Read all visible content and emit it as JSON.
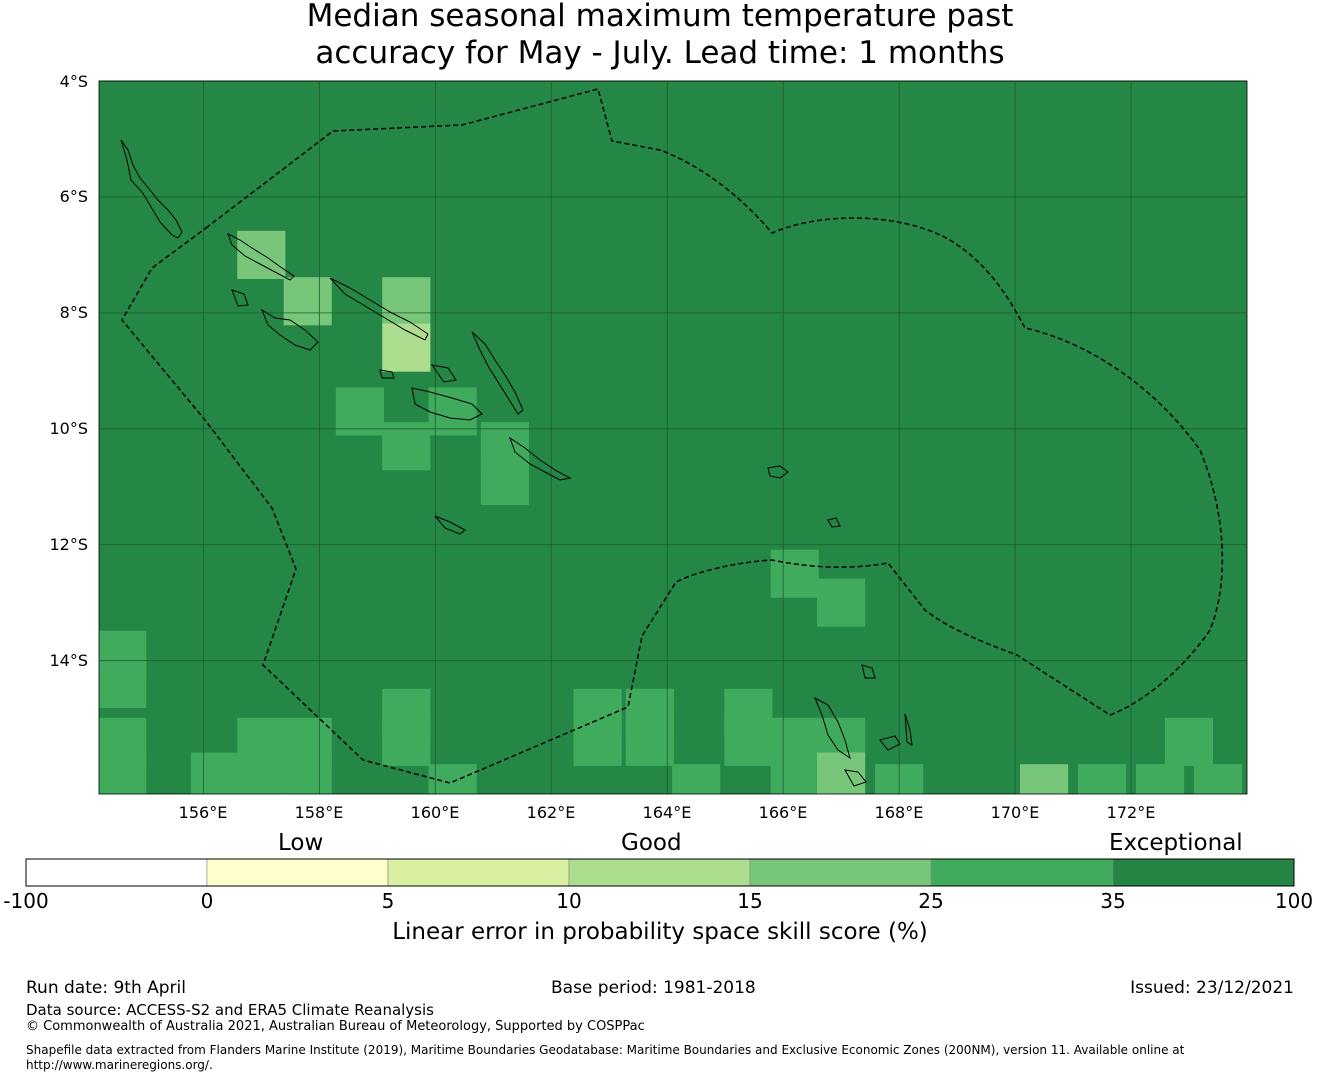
{
  "title": {
    "line1": "Median seasonal maximum temperature past",
    "line2": "accuracy for May - July. Lead time: 1 months"
  },
  "map": {
    "background_color": "#258745",
    "lat_ticks": [
      "4°S",
      "6°S",
      "8°S",
      "10°S",
      "12°S",
      "14°S"
    ],
    "lon_ticks": [
      "156°E",
      "158°E",
      "160°E",
      "162°E",
      "164°E",
      "166°E",
      "168°E",
      "170°E",
      "172°E"
    ],
    "lon_range": [
      154.2,
      174.0
    ],
    "lat_range": [
      -16.3,
      -4.0
    ],
    "grid_cell_deg": 0.83,
    "cells": [
      {
        "lon": 157.0,
        "lat": -7.0,
        "level": 4
      },
      {
        "lon": 157.8,
        "lat": -7.8,
        "level": 4
      },
      {
        "lon": 159.5,
        "lat": -7.8,
        "level": 4
      },
      {
        "lon": 159.5,
        "lat": -8.6,
        "level": 3
      },
      {
        "lon": 158.7,
        "lat": -9.7,
        "level": 5
      },
      {
        "lon": 160.3,
        "lat": -9.7,
        "level": 5
      },
      {
        "lon": 159.5,
        "lat": -10.3,
        "level": 5
      },
      {
        "lon": 161.2,
        "lat": -10.3,
        "level": 5
      },
      {
        "lon": 161.2,
        "lat": -10.9,
        "level": 5
      },
      {
        "lon": 166.2,
        "lat": -12.5,
        "level": 5
      },
      {
        "lon": 167.0,
        "lat": -13.0,
        "level": 5
      },
      {
        "lon": 154.6,
        "lat": -13.9,
        "level": 5
      },
      {
        "lon": 154.6,
        "lat": -14.4,
        "level": 5
      },
      {
        "lon": 159.5,
        "lat": -14.9,
        "level": 5
      },
      {
        "lon": 159.5,
        "lat": -15.4,
        "level": 5
      },
      {
        "lon": 162.8,
        "lat": -14.9,
        "level": 5
      },
      {
        "lon": 163.7,
        "lat": -14.9,
        "level": 5
      },
      {
        "lon": 162.8,
        "lat": -15.4,
        "level": 5
      },
      {
        "lon": 163.7,
        "lat": -15.4,
        "level": 5
      },
      {
        "lon": 165.4,
        "lat": -14.9,
        "level": 5
      },
      {
        "lon": 165.4,
        "lat": -15.4,
        "level": 5
      },
      {
        "lon": 166.2,
        "lat": -15.4,
        "level": 5
      },
      {
        "lon": 167.0,
        "lat": -15.4,
        "level": 5
      },
      {
        "lon": 166.2,
        "lat": -16.0,
        "level": 5
      },
      {
        "lon": 167.0,
        "lat": -16.0,
        "level": 4
      },
      {
        "lon": 154.6,
        "lat": -15.4,
        "level": 5
      },
      {
        "lon": 154.6,
        "lat": -16.0,
        "level": 5
      },
      {
        "lon": 156.2,
        "lat": -16.0,
        "level": 5
      },
      {
        "lon": 157.0,
        "lat": -15.4,
        "level": 5
      },
      {
        "lon": 157.8,
        "lat": -15.4,
        "level": 5
      },
      {
        "lon": 157.0,
        "lat": -16.0,
        "level": 5
      },
      {
        "lon": 157.8,
        "lat": -16.0,
        "level": 5
      },
      {
        "lon": 173.0,
        "lat": -15.4,
        "level": 5
      },
      {
        "lon": 170.5,
        "lat": -16.2,
        "level": 4
      },
      {
        "lon": 171.5,
        "lat": -16.2,
        "level": 5
      },
      {
        "lon": 172.5,
        "lat": -16.2,
        "level": 5
      },
      {
        "lon": 173.5,
        "lat": -16.2,
        "level": 5
      },
      {
        "lon": 164.5,
        "lat": -16.2,
        "level": 5
      },
      {
        "lon": 168.0,
        "lat": -16.2,
        "level": 5
      },
      {
        "lon": 160.3,
        "lat": -16.2,
        "level": 5
      }
    ]
  },
  "legend": {
    "categories": [
      "Low",
      "Good",
      "Exceptional"
    ],
    "ticks": [
      "-100",
      "0",
      "5",
      "10",
      "15",
      "25",
      "35",
      "100"
    ],
    "colors": [
      "#ffffff",
      "#ffffcc",
      "#d9f0a3",
      "#addd8e",
      "#78c679",
      "#41ab5d",
      "#238443"
    ],
    "title": "Linear error in probability space skill score (%)"
  },
  "footer": {
    "run_date": "Run date: 9th April",
    "base_period": "Base period: 1981-2018",
    "issued": "Issued: 23/12/2021",
    "data_source": "Data source: ACCESS-S2 and ERA5 Climate Reanalysis",
    "copyright": "© Commonwealth of Australia 2021, Australian Bureau of Meteorology, Supported by COSPPac",
    "shapefile_line1": "Shapefile data extracted from Flanders Marine Institute (2019), Maritime Boundaries Geodatabase: Maritime Boundaries and Exclusive Economic Zones (200NM), version 11. Available online at",
    "shapefile_line2": "http://www.marineregions.org/."
  }
}
